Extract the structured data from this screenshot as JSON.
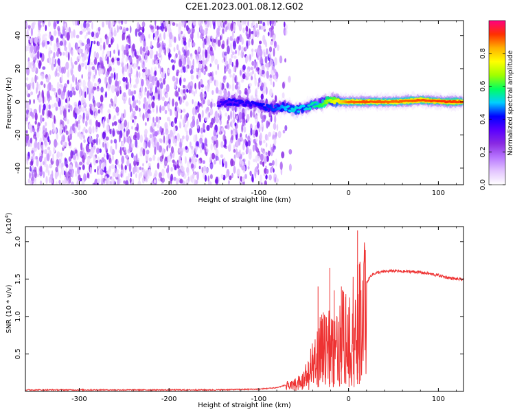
{
  "title": "C2E1.2023.001.08.12.G02",
  "chart_data": [
    {
      "type": "heatmap",
      "xlabel": "Height of straight line (km)",
      "ylabel": "Frequency (Hz)",
      "xlim": [
        -360,
        128
      ],
      "ylim": [
        -50,
        49
      ],
      "x_ticks": [
        -300,
        -200,
        -100,
        0,
        100
      ],
      "y_ticks": [
        -40,
        -20,
        0,
        20,
        40
      ],
      "colorbar": {
        "label": "Normalized spectral amplitude",
        "range": [
          0,
          1
        ],
        "ticks": [
          0.0,
          0.2,
          0.4,
          0.6,
          0.8
        ],
        "colors": [
          "#ffffff",
          "#e3c5ff",
          "#b877ff",
          "#8a2be2",
          "#5a00ff",
          "#0000ff",
          "#00cfff",
          "#00ff60",
          "#a0ff00",
          "#ffff00",
          "#ffb000",
          "#ff3000",
          "#ff0080"
        ]
      },
      "noise_region": {
        "x_start": -360,
        "x_end": -80,
        "amplitude": [
          0.05,
          0.3
        ]
      },
      "signal_track": [
        {
          "x": -145,
          "f": -1,
          "amp": 0.35
        },
        {
          "x": -130,
          "f": 0,
          "amp": 0.4
        },
        {
          "x": -112,
          "f": -1,
          "amp": 0.38
        },
        {
          "x": -95,
          "f": -3,
          "amp": 0.42
        },
        {
          "x": -80,
          "f": -4,
          "amp": 0.45
        },
        {
          "x": -70,
          "f": -3,
          "amp": 0.5
        },
        {
          "x": -60,
          "f": -5,
          "amp": 0.52
        },
        {
          "x": -50,
          "f": -4,
          "amp": 0.5
        },
        {
          "x": -40,
          "f": -2,
          "amp": 0.55
        },
        {
          "x": -30,
          "f": -1,
          "amp": 0.6
        },
        {
          "x": -20,
          "f": 1,
          "amp": 0.7
        },
        {
          "x": -10,
          "f": 0,
          "amp": 0.78
        },
        {
          "x": 0,
          "f": 0,
          "amp": 0.88
        },
        {
          "x": 20,
          "f": 0,
          "amp": 0.9
        },
        {
          "x": 50,
          "f": 0,
          "amp": 0.88
        },
        {
          "x": 80,
          "f": 1,
          "amp": 0.9
        },
        {
          "x": 110,
          "f": 0,
          "amp": 0.92
        },
        {
          "x": 128,
          "f": 0,
          "amp": 0.9
        }
      ]
    },
    {
      "type": "line",
      "xlabel": "Height of straight line (km)",
      "ylabel": "SNR (10 * v/v)",
      "yscale_label": "(x10",
      "yscale_exp": "4",
      "xlim": [
        -360,
        128
      ],
      "ylim": [
        0,
        2.2
      ],
      "x_ticks": [
        -300,
        -200,
        -100,
        0,
        100
      ],
      "y_ticks": [
        0.5,
        1.0,
        1.5,
        2.0
      ],
      "color": "#ee3333",
      "series": [
        {
          "x": [
            -360,
            -300,
            -250,
            -200,
            -150,
            -100,
            -80,
            -60,
            -50,
            -45,
            -40,
            -35,
            -30,
            -25,
            -20,
            -15,
            -10,
            -5,
            0,
            5,
            10,
            15,
            20,
            25,
            30,
            40,
            50,
            60,
            70,
            80,
            90,
            100,
            110,
            120,
            128
          ],
          "y": [
            0.02,
            0.02,
            0.02,
            0.02,
            0.02,
            0.03,
            0.05,
            0.12,
            0.2,
            0.3,
            0.45,
            0.6,
            0.7,
            0.8,
            0.7,
            0.75,
            0.85,
            0.95,
            1.0,
            1.05,
            1.15,
            1.3,
            1.45,
            1.55,
            1.58,
            1.6,
            1.61,
            1.6,
            1.6,
            1.59,
            1.57,
            1.55,
            1.52,
            1.5,
            1.49
          ]
        }
      ],
      "spikes": [
        {
          "x": -34,
          "y": 1.4
        },
        {
          "x": -26,
          "y": 1.0
        },
        {
          "x": -21,
          "y": 1.65
        },
        {
          "x": -16,
          "y": 1.35
        },
        {
          "x": -8,
          "y": 1.4
        },
        {
          "x": -3,
          "y": 1.3
        },
        {
          "x": 10,
          "y": 2.15
        },
        {
          "x": 12,
          "y": 1.7
        }
      ]
    }
  ]
}
